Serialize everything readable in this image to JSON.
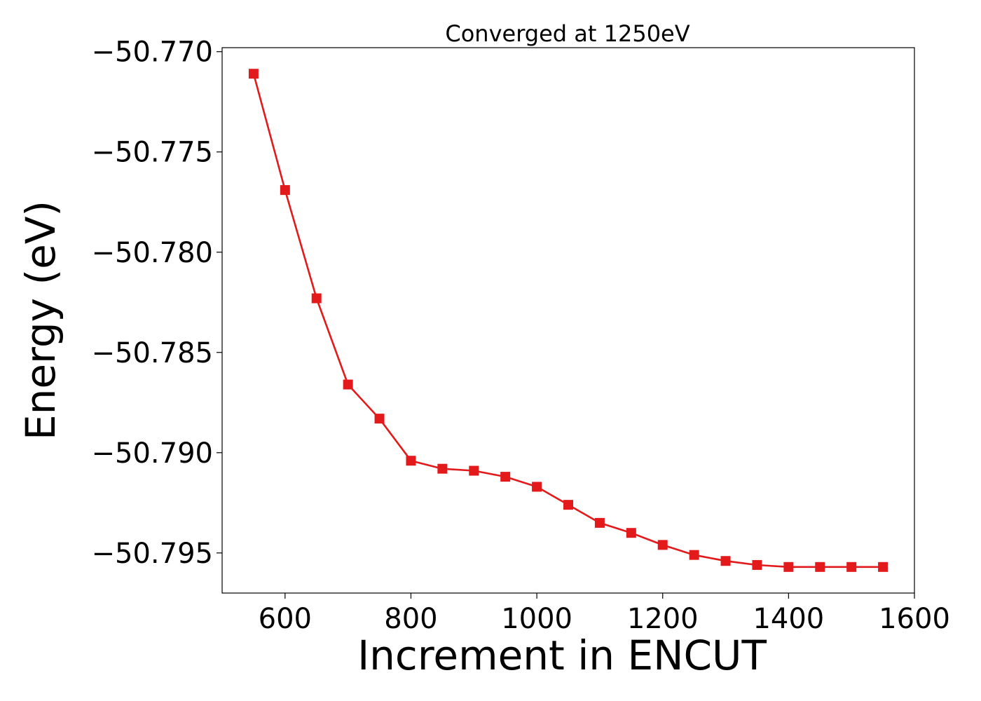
{
  "chart_data": {
    "type": "line",
    "title": "Converged at 1250eV",
    "xlabel": "Increment in ENCUT",
    "ylabel": "Energy (eV)",
    "xlim": [
      500,
      1600
    ],
    "ylim": [
      -50.797,
      -50.7698
    ],
    "xticks": [
      600,
      800,
      1000,
      1200,
      1400,
      1600
    ],
    "yticks": [
      -50.77,
      -50.775,
      -50.78,
      -50.785,
      -50.79,
      -50.795
    ],
    "xtick_labels": [
      "600",
      "800",
      "1000",
      "1200",
      "1400",
      "1600"
    ],
    "ytick_labels": [
      "−50.770",
      "−50.775",
      "−50.780",
      "−50.785",
      "−50.790",
      "−50.795"
    ],
    "grid": false,
    "series": [
      {
        "color": "#e31a1c",
        "marker": "square",
        "x": [
          550,
          600,
          650,
          700,
          750,
          800,
          850,
          900,
          950,
          1000,
          1050,
          1100,
          1150,
          1200,
          1250,
          1300,
          1350,
          1400,
          1450,
          1500,
          1550
        ],
        "y": [
          -50.7711,
          -50.7769,
          -50.7823,
          -50.7866,
          -50.7883,
          -50.7904,
          -50.7908,
          -50.7909,
          -50.7912,
          -50.7917,
          -50.7926,
          -50.7935,
          -50.794,
          -50.7946,
          -50.7951,
          -50.7954,
          -50.7956,
          -50.7957,
          -50.7957,
          -50.7957,
          -50.7957
        ]
      }
    ]
  }
}
